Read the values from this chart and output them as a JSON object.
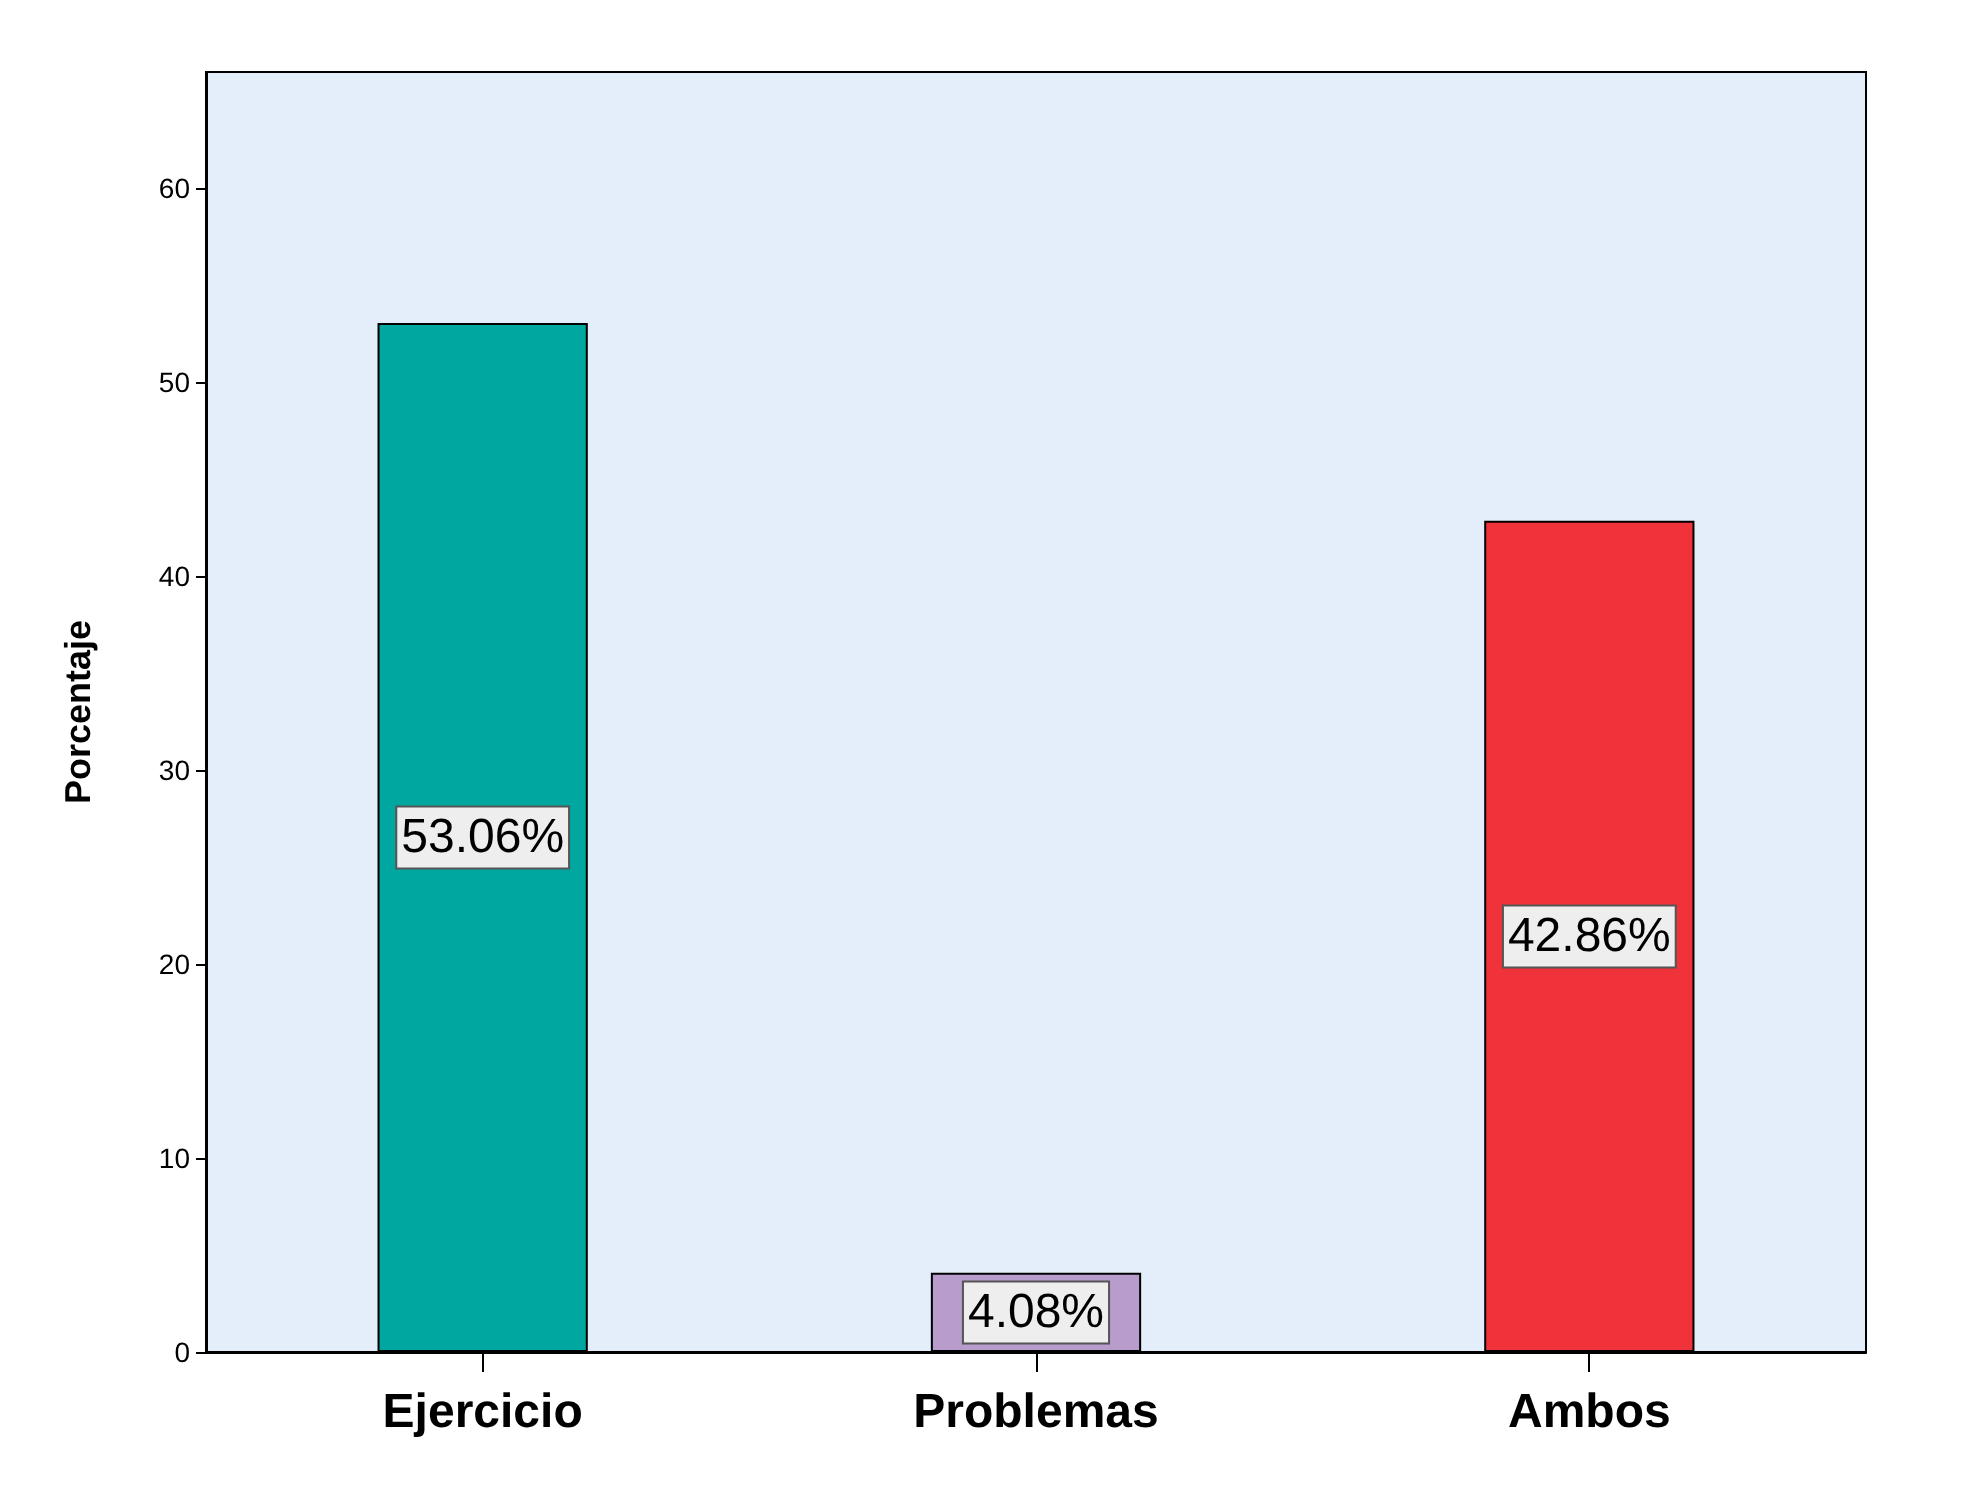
{
  "chart_data": {
    "type": "bar",
    "ylabel": "Porcentaje",
    "categories": [
      "Ejercicio",
      "Problemas",
      "Ambos"
    ],
    "values": [
      53.06,
      4.08,
      42.86
    ],
    "colors": [
      "#00a6a0",
      "#b89ccc",
      "#f0333a"
    ],
    "value_labels": [
      "53.06%",
      "4.08%",
      "42.86%"
    ],
    "ylim": [
      0,
      66
    ],
    "yticks": [
      0,
      10,
      20,
      30,
      40,
      50,
      60
    ],
    "grid": false
  }
}
